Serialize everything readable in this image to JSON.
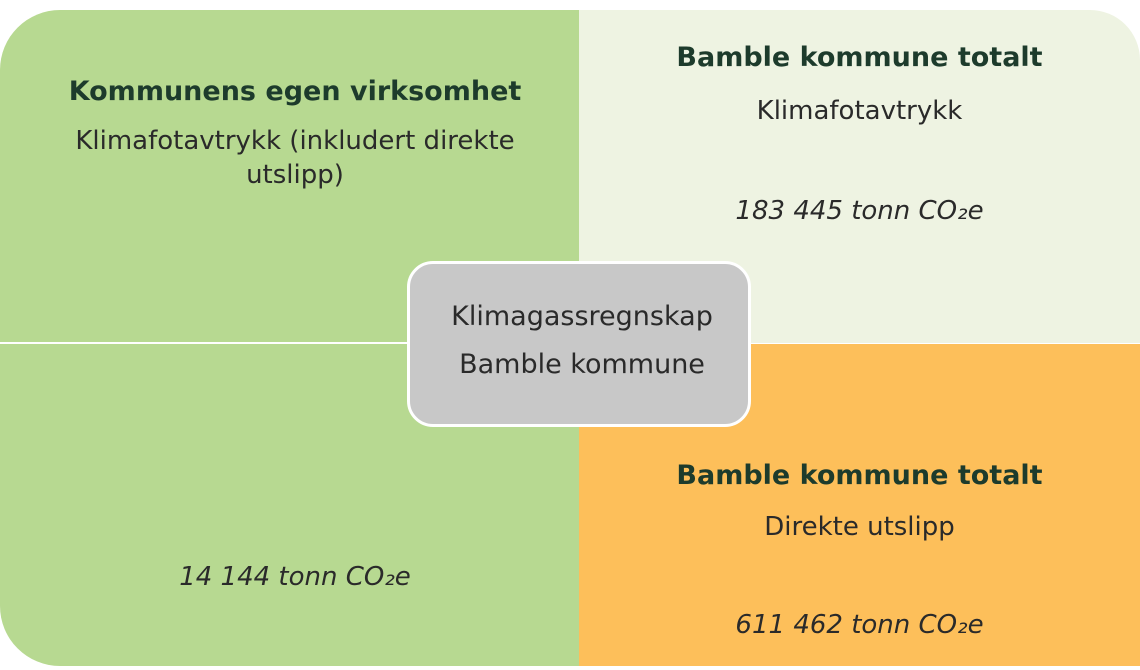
{
  "left": {
    "title": "Kommunens egen virksomhet",
    "subtitle": "Klimafotavtrykk (inkludert direkte utslipp)",
    "value": "14 144 tonn CO₂e"
  },
  "top_right": {
    "title": "Bamble kommune totalt",
    "subtitle": "Klimafotavtrykk",
    "value": "183 445 tonn CO₂e"
  },
  "bottom_right": {
    "title": "Bamble kommune totalt",
    "subtitle": "Direkte utslipp",
    "value": "611 462 tonn CO₂e"
  },
  "center": {
    "line1": "Klimagassregnskap",
    "line2": "Bamble kommune"
  }
}
